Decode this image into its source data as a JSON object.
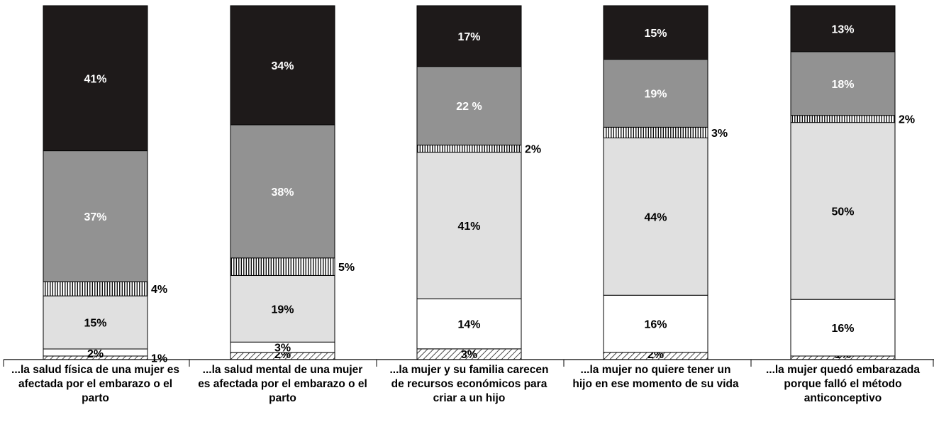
{
  "chart_data": {
    "type": "bar",
    "stacked": true,
    "categories": [
      "...la salud física de una mujer es afectada por el embarazo o el parto",
      "...la salud mental de una mujer es afectada por el embarazo o el parto",
      "...la mujer y su familia carecen de recursos económicos para criar a un hijo",
      "...la mujer no quiere tener un hijo en ese momento de su vida",
      "...la mujer quedó embarazada porque falló el método anticonceptivo"
    ],
    "series": [
      {
        "values": [
          1,
          2,
          3,
          2,
          1
        ],
        "labels": [
          "1%",
          "2%",
          "3%",
          "2%",
          "1%"
        ],
        "fill": "hatch-diagonal"
      },
      {
        "values": [
          2,
          3,
          14,
          16,
          16
        ],
        "labels": [
          "2%",
          "3%",
          "14%",
          "16%",
          "16%"
        ],
        "fill": "#ffffff"
      },
      {
        "values": [
          15,
          19,
          41,
          44,
          50
        ],
        "labels": [
          "15%",
          "19%",
          "41%",
          "44%",
          "50%"
        ],
        "fill": "#e0e0e0"
      },
      {
        "values": [
          4,
          5,
          2,
          3,
          2
        ],
        "labels": [
          "4%",
          "5%",
          "2%",
          "3%",
          "2%"
        ],
        "fill": "hatch-vertical"
      },
      {
        "values": [
          37,
          38,
          22,
          19,
          18
        ],
        "labels": [
          "37%",
          "38%",
          "22 %",
          "19%",
          "18%"
        ],
        "fill": "#929292"
      },
      {
        "values": [
          41,
          34,
          17,
          15,
          13
        ],
        "labels": [
          "41%",
          "34%",
          "17%",
          "15%",
          "13%"
        ],
        "fill": "#1e1a1a"
      }
    ],
    "colors": {
      "dark": "#1e1a1a",
      "medium": "#929292",
      "light": "#e0e0e0",
      "white": "#ffffff"
    },
    "ylim": [
      0,
      100
    ],
    "grid": false,
    "legend": "none"
  }
}
